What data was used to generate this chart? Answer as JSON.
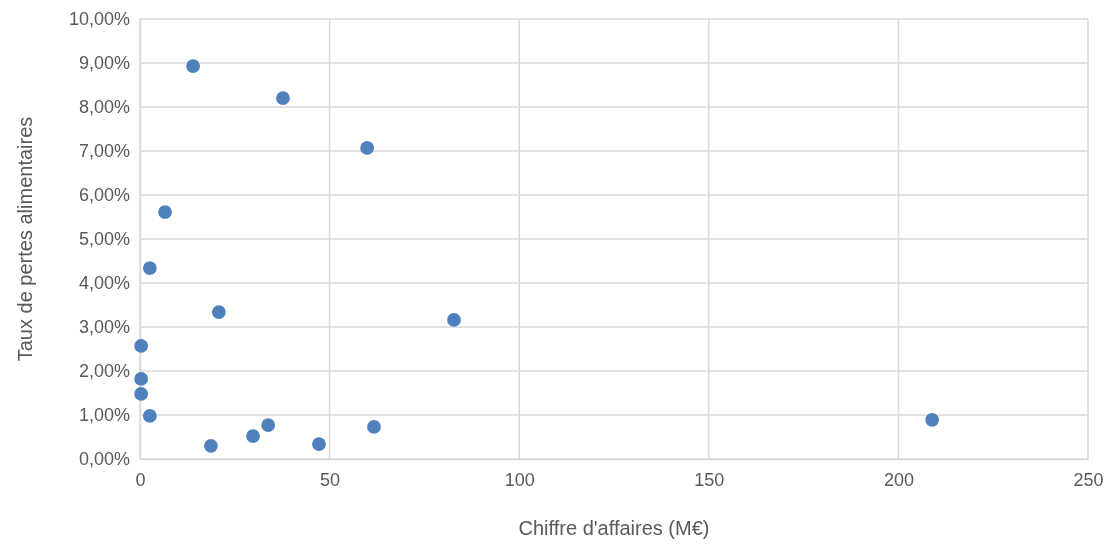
{
  "chart_data": {
    "type": "scatter",
    "xlabel": "Chiffre d'affaires (M€)",
    "ylabel": "Taux de pertes alimentaires",
    "x": [
      14.0,
      37.7,
      59.9,
      6.6,
      2.6,
      20.8,
      82.8,
      0.3,
      0.3,
      0.3,
      2.6,
      18.7,
      29.8,
      33.8,
      47.2,
      61.7,
      208.9
    ],
    "series": [
      {
        "color": "#4f81bd",
        "values": [
          8.93,
          8.2,
          7.07,
          5.61,
          4.34,
          3.34,
          3.16,
          2.57,
          1.82,
          1.48,
          0.98,
          0.3,
          0.52,
          0.77,
          0.34,
          0.73,
          0.89
        ]
      }
    ],
    "xlim": [
      0,
      250
    ],
    "xticks": [
      0,
      50,
      100,
      150,
      200,
      250
    ],
    "ylim": [
      0,
      10
    ],
    "yticks": [
      {
        "value": 0,
        "label": "0,00%"
      },
      {
        "value": 1,
        "label": "1,00%"
      },
      {
        "value": 2,
        "label": "2,00%"
      },
      {
        "value": 3,
        "label": "3,00%"
      },
      {
        "value": 4,
        "label": "4,00%"
      },
      {
        "value": 5,
        "label": "5,00%"
      },
      {
        "value": 6,
        "label": "6,00%"
      },
      {
        "value": 7,
        "label": "7,00%"
      },
      {
        "value": 8,
        "label": "8,00%"
      },
      {
        "value": 9,
        "label": "9,00%"
      },
      {
        "value": 10,
        "label": "10,00%"
      }
    ],
    "grid": true,
    "marker": "circle"
  }
}
